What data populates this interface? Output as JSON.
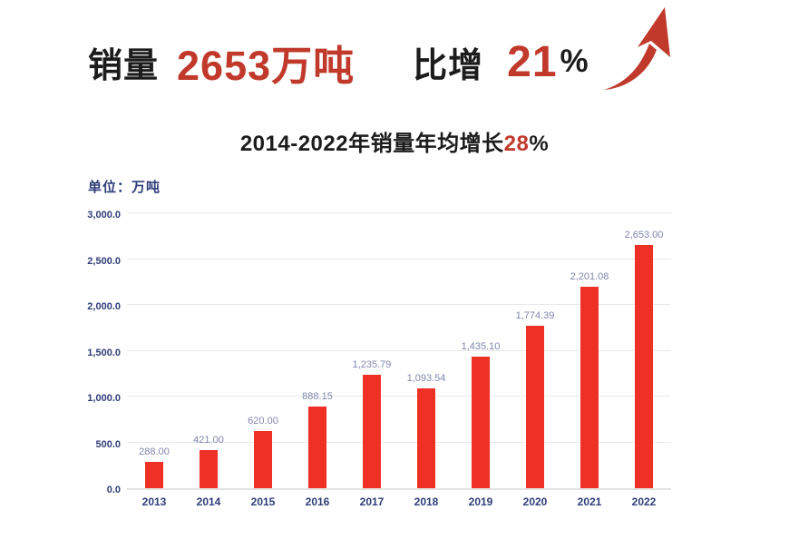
{
  "header": {
    "sales_label": "销量",
    "sales_value": "2653万吨",
    "increase_label": "比增",
    "increase_value": "21",
    "percent_sign": "%"
  },
  "subtitle": {
    "prefix": "2014-2022年销量年均增长",
    "highlight": "28",
    "suffix": "%"
  },
  "chart_data": {
    "type": "bar",
    "unit_label": "单位：万吨",
    "categories": [
      "2013",
      "2014",
      "2015",
      "2016",
      "2017",
      "2018",
      "2019",
      "2020",
      "2021",
      "2022"
    ],
    "values": [
      288.0,
      421.0,
      620.0,
      888.15,
      1235.79,
      1093.54,
      1435.1,
      1774.39,
      2201.08,
      2653.0
    ],
    "value_labels": [
      "288.00",
      "421.00",
      "620.00",
      "888.15",
      "1,235.79",
      "1,093.54",
      "1,435.10",
      "1,774.39",
      "2,201.08",
      "2,653.00"
    ],
    "y_ticks": [
      {
        "label": "3,000.0",
        "value": 3000
      },
      {
        "label": "2,500.0",
        "value": 2500
      },
      {
        "label": "2,000.0",
        "value": 2000
      },
      {
        "label": "1,500.0",
        "value": 1500
      },
      {
        "label": "1,000.0",
        "value": 1000
      },
      {
        "label": "500.0",
        "value": 500
      },
      {
        "label": "0.0",
        "value": 0
      }
    ],
    "ylim": [
      0,
      3000
    ],
    "grid": true,
    "legend": "none",
    "title": "销量 2653万吨 比增 21%",
    "xlabel": "",
    "ylabel": "万吨"
  },
  "icons": {
    "growth_arrow": "up-right-swoosh-arrow"
  },
  "colors": {
    "accent_red": "#c0392b",
    "bar_red": "#ee3124",
    "navy": "#2f3d78",
    "value_label": "#7e87ad",
    "gridline": "#e9e9e9",
    "ink": "#1c1c1c"
  }
}
